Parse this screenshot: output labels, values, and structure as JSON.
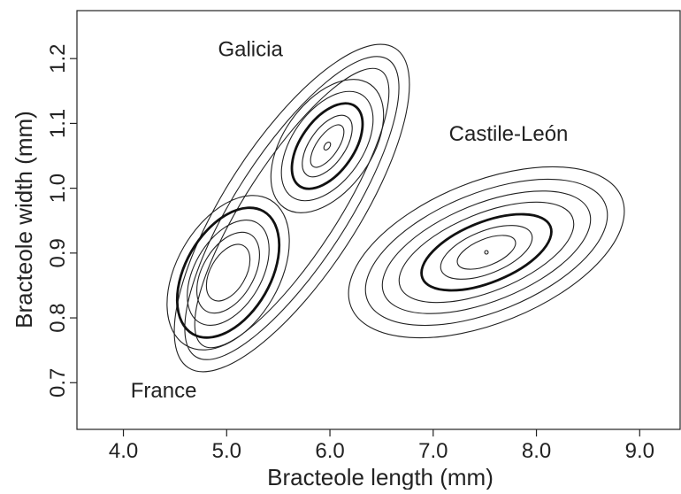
{
  "chart_data": {
    "type": "contour",
    "x_label": "Bracteole length (mm)",
    "y_label": "Bracteole width (mm)",
    "xlim": [
      3.55,
      9.4
    ],
    "ylim": [
      0.628,
      1.274
    ],
    "xticks": [
      {
        "value": 4,
        "label": "4.0"
      },
      {
        "value": 5,
        "label": "5.0"
      },
      {
        "value": 6,
        "label": "6.0"
      },
      {
        "value": 7,
        "label": "7.0"
      },
      {
        "value": 8,
        "label": "8.0"
      },
      {
        "value": 9,
        "label": "9.0"
      }
    ],
    "yticks": [
      {
        "value": 0.7,
        "label": "0.7"
      },
      {
        "value": 0.8,
        "label": "0.8"
      },
      {
        "value": 0.9,
        "label": "0.9"
      },
      {
        "value": 1.0,
        "label": "1.0"
      },
      {
        "value": 1.1,
        "label": "1.1"
      },
      {
        "value": 1.2,
        "label": "1.2"
      }
    ],
    "annotations": [
      {
        "text": "Galicia",
        "x": 5.23,
        "y": 1.212
      },
      {
        "text": "Castile-León",
        "x": 7.73,
        "y": 1.082
      },
      {
        "text": "France",
        "x": 4.39,
        "y": 0.686
      }
    ],
    "color": "#222222"
  }
}
